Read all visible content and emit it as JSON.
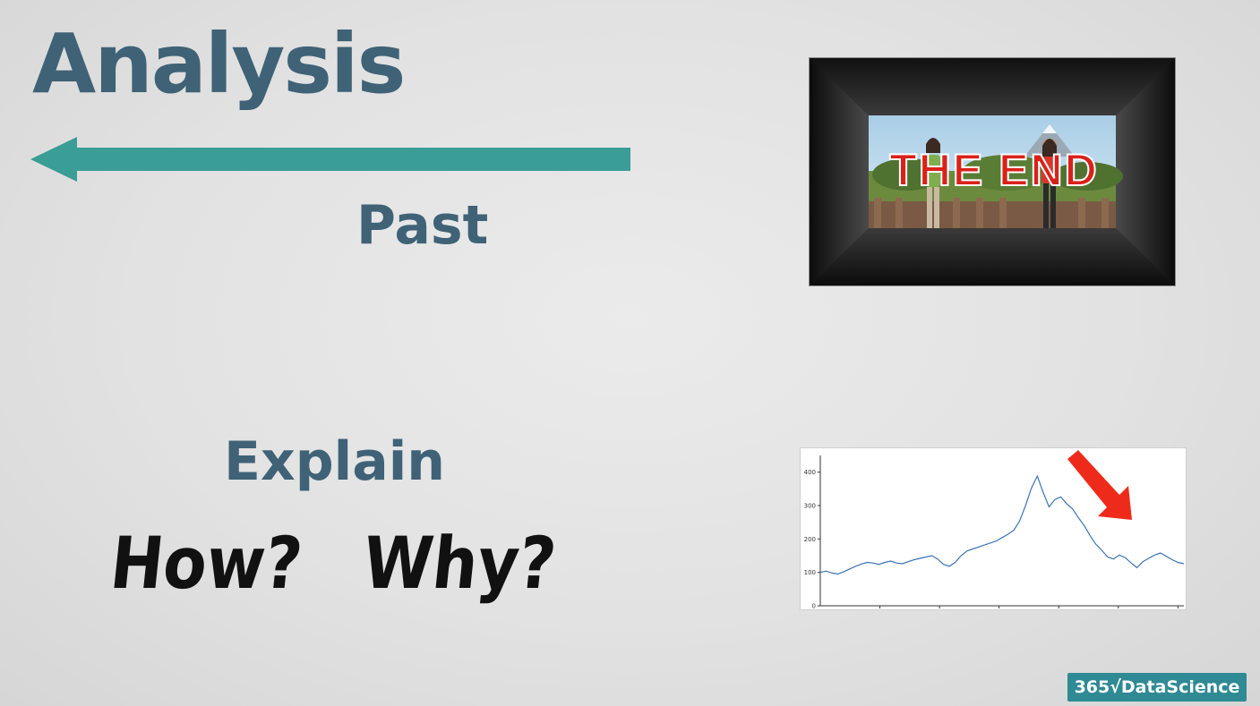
{
  "slide": {
    "title": "Analysis",
    "past_label": "Past",
    "explain_label": "Explain",
    "how_label": "How?",
    "why_label": "Why?"
  },
  "illustration": {
    "end_text": "THE END"
  },
  "chart_data": {
    "type": "line",
    "ylim": [
      0,
      450
    ],
    "yticks": [
      0,
      100,
      200,
      300,
      400
    ],
    "y_tick_labels": [
      "0",
      "100",
      "200",
      "300",
      "400"
    ],
    "series": [
      {
        "values": [
          100,
          104,
          98,
          95,
          102,
          110,
          118,
          125,
          130,
          128,
          124,
          130,
          134,
          128,
          126,
          132,
          138,
          142,
          146,
          150,
          140,
          124,
          118,
          130,
          150,
          164,
          170,
          176,
          182,
          188,
          194,
          204,
          214,
          226,
          254,
          300,
          352,
          388,
          340,
          296,
          318,
          326,
          306,
          290,
          264,
          240,
          210,
          184,
          166,
          146,
          140,
          152,
          144,
          128,
          114,
          132,
          142,
          152,
          158,
          148,
          138,
          130,
          126
        ]
      }
    ],
    "annotation": "red arrow pointing down-right",
    "colors": {
      "line": "#3b73b4",
      "arrow": "#ee2b1b"
    }
  },
  "logo": {
    "text": "365√DataScience"
  }
}
